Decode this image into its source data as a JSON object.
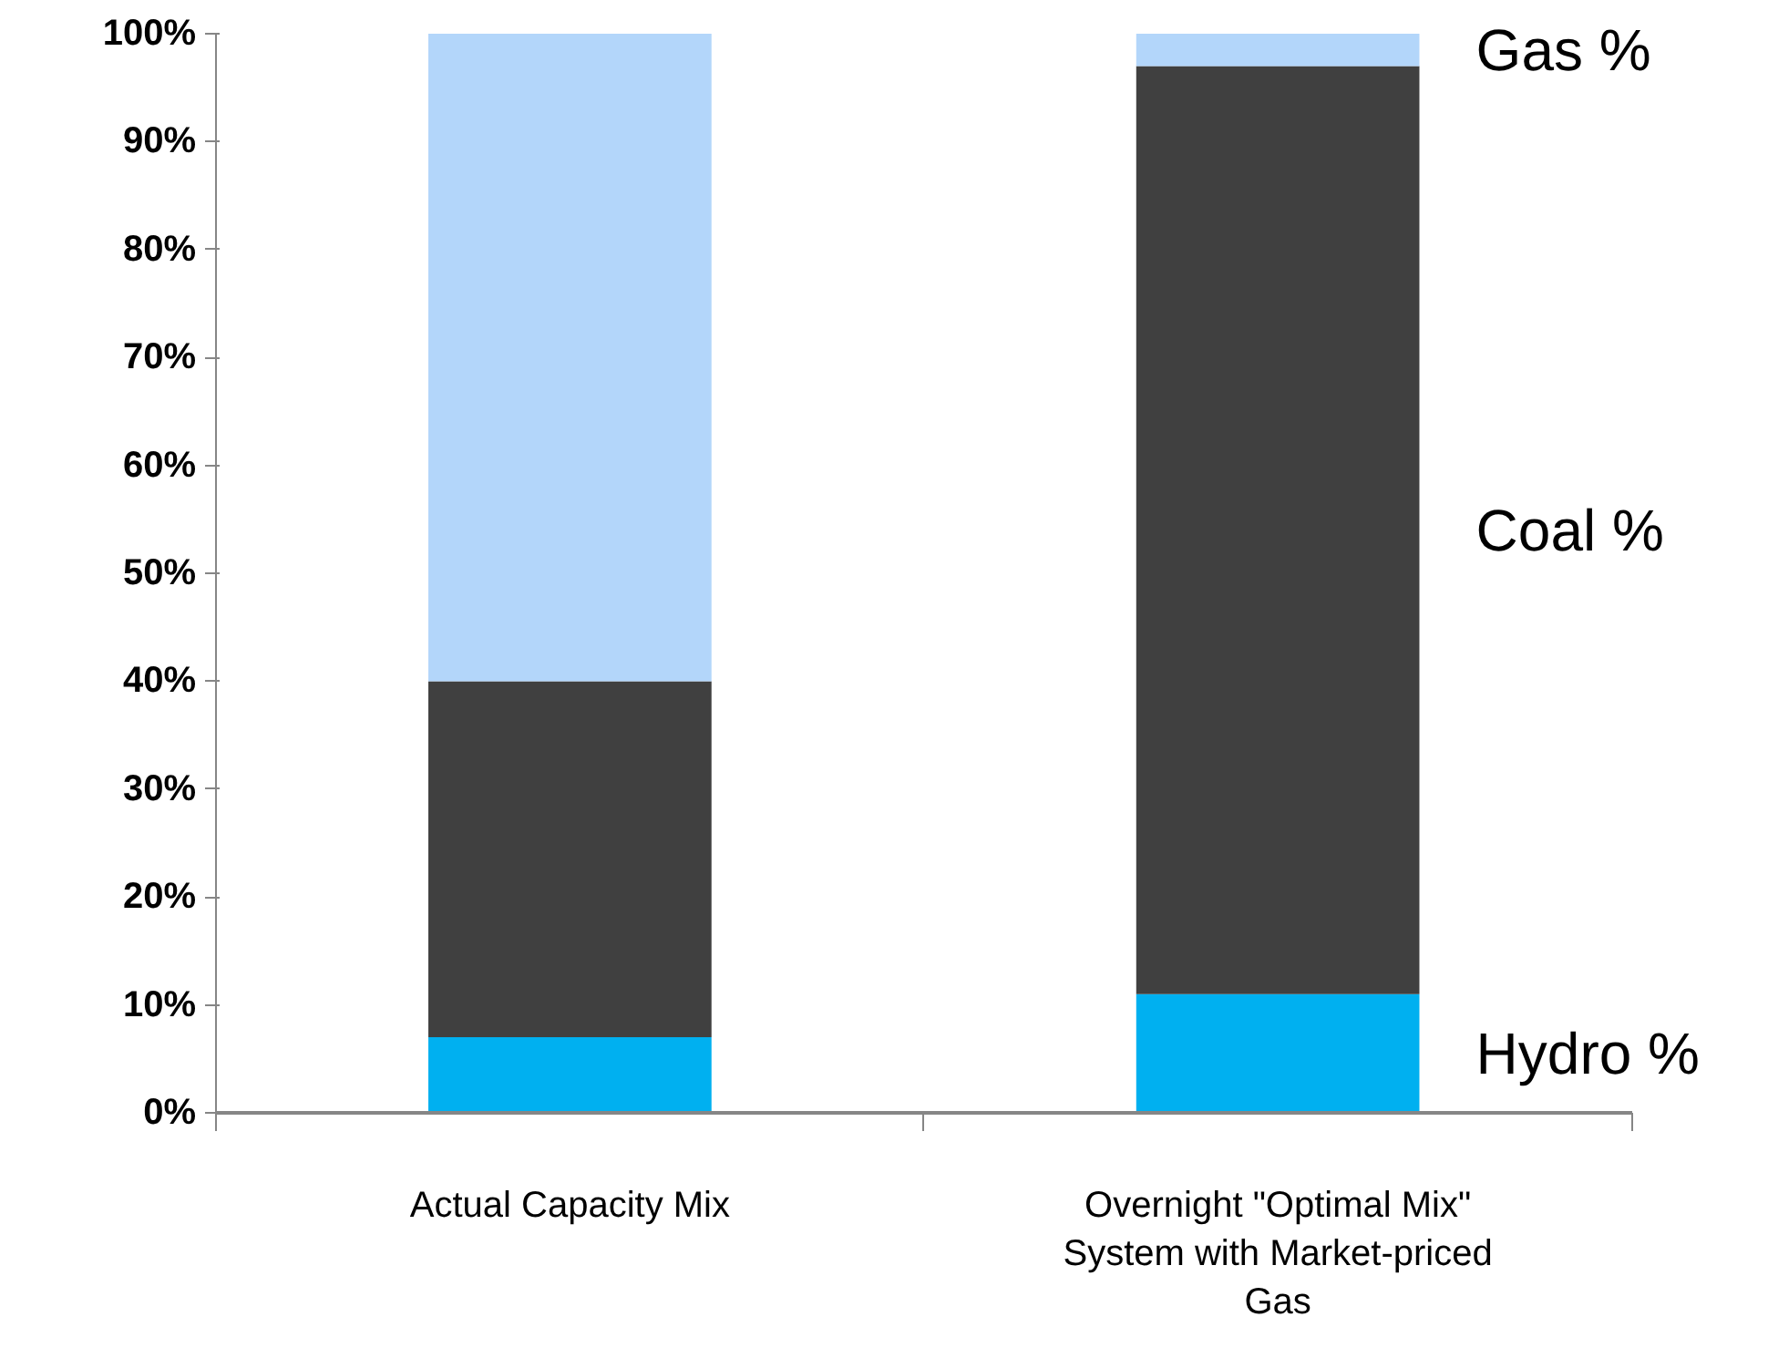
{
  "chart_data": {
    "type": "bar",
    "stacked": true,
    "categories": [
      "Actual Capacity Mix",
      "Overnight \"Optimal Mix\"\nSystem with Market-priced\nGas"
    ],
    "series": [
      {
        "name": "Hydro %",
        "color": "#00b0f0",
        "values": [
          7,
          11
        ]
      },
      {
        "name": "Coal %",
        "color": "#404040",
        "values": [
          33,
          86
        ]
      },
      {
        "name": "Gas %",
        "color": "#b3d6fa",
        "values": [
          60,
          3
        ]
      }
    ],
    "ylim": [
      0,
      100
    ],
    "yticks": [
      {
        "value": 0,
        "label": "0%"
      },
      {
        "value": 10,
        "label": "10%"
      },
      {
        "value": 20,
        "label": "20%"
      },
      {
        "value": 30,
        "label": "30%"
      },
      {
        "value": 40,
        "label": "40%"
      },
      {
        "value": 50,
        "label": "50%"
      },
      {
        "value": 60,
        "label": "60%"
      },
      {
        "value": 70,
        "label": "70%"
      },
      {
        "value": 80,
        "label": "80%"
      },
      {
        "value": 90,
        "label": "90%"
      },
      {
        "value": 100,
        "label": "100%"
      }
    ],
    "grid": false
  }
}
